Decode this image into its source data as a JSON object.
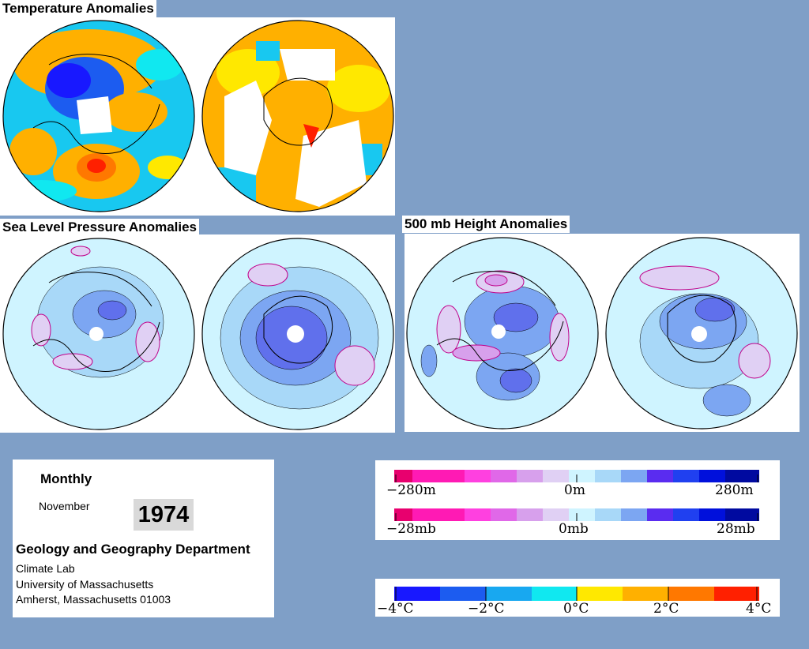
{
  "sections": {
    "temperature": {
      "title": "Temperature Anomalies"
    },
    "slp": {
      "title": "Sea Level Pressure Anomalies"
    },
    "height500": {
      "title": "500 mb Height Anomalies"
    }
  },
  "info": {
    "period": "Monthly",
    "month": "November",
    "year": "1974",
    "department": "Geology and Geography Department",
    "lab": "Climate Lab",
    "university": "University of Massachusetts",
    "address": "Amherst, Massachusetts 01003"
  },
  "legends": {
    "height": {
      "min": "−280m",
      "mid": "0m",
      "max": "280m"
    },
    "pressure": {
      "min": "−28mb",
      "mid": "0mb",
      "max": "28mb"
    },
    "temperature": {
      "l1": "−4°C",
      "l2": "−2°C",
      "l3": "0°C",
      "l4": "2°C",
      "l5": "4°C"
    }
  },
  "colors": {
    "background": "#7f9fc7",
    "anomaly_scale": [
      "#e8006e",
      "#ff1ab4",
      "#ff40e0",
      "#e068e8",
      "#d7a0ec",
      "#e0d0f4",
      "#cff4ff",
      "#a8d8f8",
      "#7ca6f2",
      "#6070ec",
      "#5a2cf0",
      "#2040f0",
      "#0010dc",
      "#000aa0"
    ],
    "temperature_scale": [
      "#1818ff",
      "#1c5cf0",
      "#18a8f0",
      "#10e8f0",
      "#ffe800",
      "#ffb000",
      "#ff7800",
      "#ff2000"
    ]
  }
}
